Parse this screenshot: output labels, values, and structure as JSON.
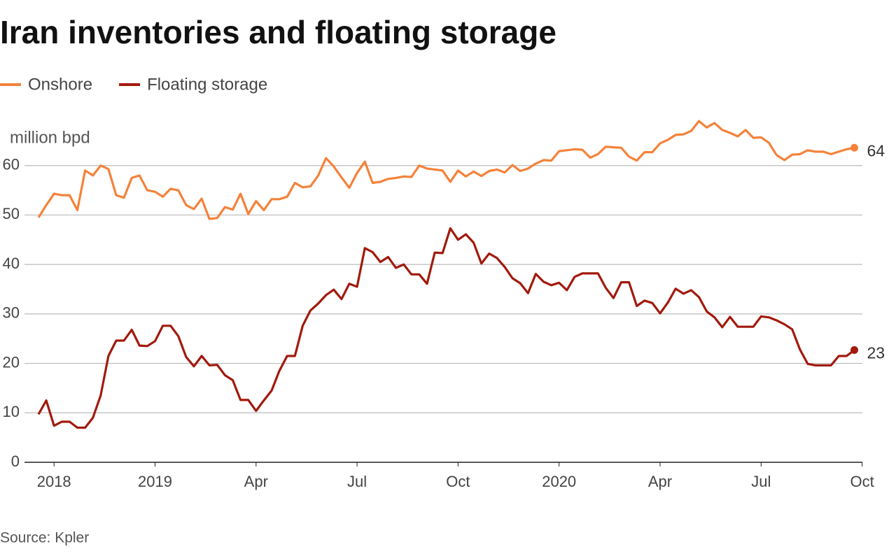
{
  "chart_data": {
    "type": "line",
    "title": "Iran inventories and floating storage",
    "y_label": "million bpd",
    "source": "Source: Kpler",
    "legend": "top-left",
    "grid": true,
    "ylim": [
      0,
      70
    ],
    "yticks": [
      0,
      10,
      20,
      30,
      40,
      50,
      60
    ],
    "categories": [
      null,
      null,
      "2018",
      null,
      null,
      null,
      null,
      null,
      null,
      null,
      null,
      null,
      null,
      null,
      null,
      "2019",
      null,
      null,
      null,
      null,
      null,
      null,
      null,
      null,
      null,
      null,
      null,
      null,
      "Apr",
      null,
      null,
      null,
      null,
      null,
      null,
      null,
      null,
      null,
      null,
      null,
      null,
      "Jul",
      null,
      null,
      null,
      null,
      null,
      null,
      null,
      null,
      null,
      null,
      null,
      null,
      "Oct",
      null,
      null,
      null,
      null,
      null,
      null,
      null,
      null,
      null,
      null,
      null,
      null,
      "2020",
      null,
      null,
      null,
      null,
      null,
      null,
      null,
      null,
      null,
      null,
      null,
      null,
      "Apr",
      null,
      null,
      null,
      null,
      null,
      null,
      null,
      null,
      null,
      null,
      null,
      null,
      "Jul",
      null,
      null,
      null,
      null,
      null,
      null,
      null,
      null,
      null,
      null,
      null,
      null,
      "Oct"
    ],
    "series": [
      {
        "name": "Onshore",
        "color": "#f4823a",
        "end_label": "64",
        "values": [
          49.5,
          52,
          54.3,
          54,
          54,
          51,
          59,
          58,
          60,
          59.3,
          54,
          53.5,
          57.5,
          58,
          55,
          54.7,
          53.7,
          55.3,
          55,
          52,
          51.2,
          53.3,
          49.2,
          49.4,
          51.6,
          51.1,
          54.3,
          50.2,
          52.8,
          51,
          53.2,
          53.2,
          53.7,
          56.5,
          55.6,
          55.8,
          58,
          61.5,
          59.8,
          57.6,
          55.5,
          58.5,
          60.8,
          56.5,
          56.7,
          57.3,
          57.5,
          57.8,
          57.7,
          60,
          59.4,
          59.2,
          59,
          56.7,
          59,
          57.8,
          58.8,
          57.9,
          58.9,
          59.2,
          58.6,
          60.1,
          58.9,
          59.4,
          60.4,
          61.1,
          61,
          62.9,
          63.1,
          63.3,
          63.2,
          61.6,
          62.3,
          63.8,
          63.7,
          63.6,
          61.8,
          61,
          62.7,
          62.7,
          64.5,
          65.2,
          66.2,
          66.3,
          67,
          69,
          67.7,
          68.6,
          67.2,
          66.6,
          65.9,
          67.2,
          65.6,
          65.7,
          64.6,
          62.1,
          61.1,
          62.2,
          62.3,
          63.1,
          62.8,
          62.8,
          62.3,
          62.8,
          63.3,
          63.6,
          null
        ]
      },
      {
        "name": "Floating storage",
        "color": "#a11a0d",
        "end_label": "23",
        "values": [
          9.7,
          12.5,
          7.4,
          8.2,
          8.2,
          7,
          7,
          9,
          13.5,
          21.5,
          24.6,
          24.6,
          26.8,
          23.6,
          23.5,
          24.5,
          27.6,
          27.6,
          25.5,
          21.3,
          19.4,
          21.5,
          19.6,
          19.7,
          17.6,
          16.6,
          12.6,
          12.6,
          10.4,
          12.5,
          14.5,
          18.5,
          21.5,
          21.5,
          27.6,
          30.7,
          32.1,
          33.8,
          34.9,
          33,
          36.1,
          35.5,
          43.3,
          42.5,
          40.5,
          41.5,
          39.3,
          40,
          38,
          38,
          36.1,
          42.4,
          42.3,
          47.3,
          45,
          46.1,
          44.4,
          40.2,
          42.2,
          41.3,
          39.5,
          37.2,
          36.2,
          34.2,
          38.1,
          36.5,
          35.8,
          36.3,
          34.8,
          37.5,
          38.2,
          38.2,
          38.2,
          35.3,
          33.2,
          36.4,
          36.4,
          31.6,
          32.7,
          32.2,
          30.1,
          32.3,
          35.1,
          34.1,
          34.8,
          33.4,
          30.5,
          29.3,
          27.3,
          29.4,
          27.4,
          27.4,
          27.4,
          29.5,
          29.3,
          28.7,
          27.9,
          26.9,
          22.8,
          19.9,
          19.6,
          19.6,
          19.6,
          21.5,
          21.5,
          22.7,
          null
        ]
      }
    ]
  }
}
